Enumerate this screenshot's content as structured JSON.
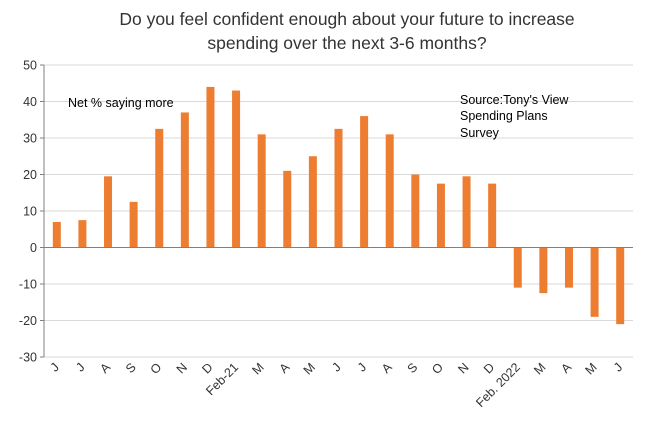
{
  "chart_data": {
    "type": "bar",
    "title_lines": [
      "Do you feel confident enough about your future to increase",
      "spending over the next 3-6 months?"
    ],
    "annotation": "Net % saying more",
    "source_lines": [
      "Source:Tony's View",
      "Spending Plans",
      "Survey"
    ],
    "categories": [
      "J",
      "J",
      "A",
      "S",
      "O",
      "N",
      "D",
      "Feb-21",
      "M",
      "A",
      "M",
      "J",
      "J",
      "A",
      "S",
      "O",
      "N",
      "D",
      "Feb. 2022",
      "M",
      "A",
      "M",
      "J"
    ],
    "values": [
      7,
      7.5,
      19.5,
      12.5,
      32.5,
      37,
      44,
      43,
      31,
      21,
      25,
      32.5,
      36,
      31,
      20,
      17.5,
      19.5,
      17.5,
      -11,
      -12.5,
      -11,
      -19,
      -21
    ],
    "ylim": [
      -30,
      50
    ],
    "yticks": [
      -30,
      -20,
      -10,
      0,
      10,
      20,
      30,
      40,
      50
    ],
    "grid": true,
    "xlabel": "",
    "ylabel": "",
    "colors": {
      "bar": "#ED7D31",
      "grid": "#D9D9D9",
      "axis": "#808080"
    }
  }
}
